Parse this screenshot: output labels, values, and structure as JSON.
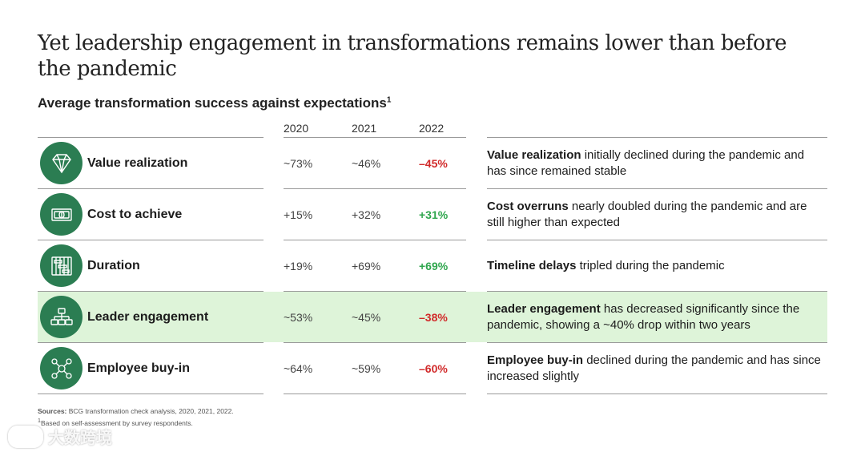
{
  "title": "Yet leadership engagement in transformations remains lower than before the pandemic",
  "subtitle": "Average transformation success against expectations",
  "subtitle_sup": "1",
  "years": [
    "2020",
    "2021",
    "2022"
  ],
  "colors": {
    "icon_bg": "#2b7d52",
    "highlight_bg": "#def4d9",
    "negative": "#d12a2a",
    "positive": "#2fa64d"
  },
  "rows": [
    {
      "label": "Value realization",
      "icon": "diamond-icon",
      "v2020": "~73%",
      "v2021": "~46%",
      "v2022": "–45%",
      "trend": "negative",
      "desc_bold": "Value realization",
      "desc_rest": " initially declined during the pandemic and has since remained stable"
    },
    {
      "label": "Cost to achieve",
      "icon": "banknote-icon",
      "v2020": "+15%",
      "v2021": "+32%",
      "v2022": "+31%",
      "trend": "positive",
      "desc_bold": "Cost overruns",
      "desc_rest": " nearly doubled during the pandemic and are still higher than expected"
    },
    {
      "label": "Duration",
      "icon": "timeline-icon",
      "v2020": "+19%",
      "v2021": "+69%",
      "v2022": "+69%",
      "trend": "positive",
      "desc_bold": "Timeline delays",
      "desc_rest": " tripled during the pandemic"
    },
    {
      "label": "Leader engagement",
      "icon": "org-chart-icon",
      "v2020": "~53%",
      "v2021": "~45%",
      "v2022": "–38%",
      "trend": "negative",
      "desc_bold": "Leader engagement",
      "desc_rest": " has decreased significantly since the pandemic, showing a ~40% drop within two years"
    },
    {
      "label": "Employee buy-in",
      "icon": "people-network-icon",
      "v2020": "~64%",
      "v2021": "~59%",
      "v2022": "–60%",
      "trend": "negative",
      "desc_bold": "Employee buy-in",
      "desc_rest": " declined during the pandemic and has since increased slightly"
    }
  ],
  "footnotes": {
    "sources_label": "Sources:",
    "sources_text": " BCG transformation check analysis, 2020, 2021, 2022.",
    "note_sup": "1",
    "note_text": "Based on self-assessment by survey respondents."
  },
  "watermark": "大数跨境"
}
